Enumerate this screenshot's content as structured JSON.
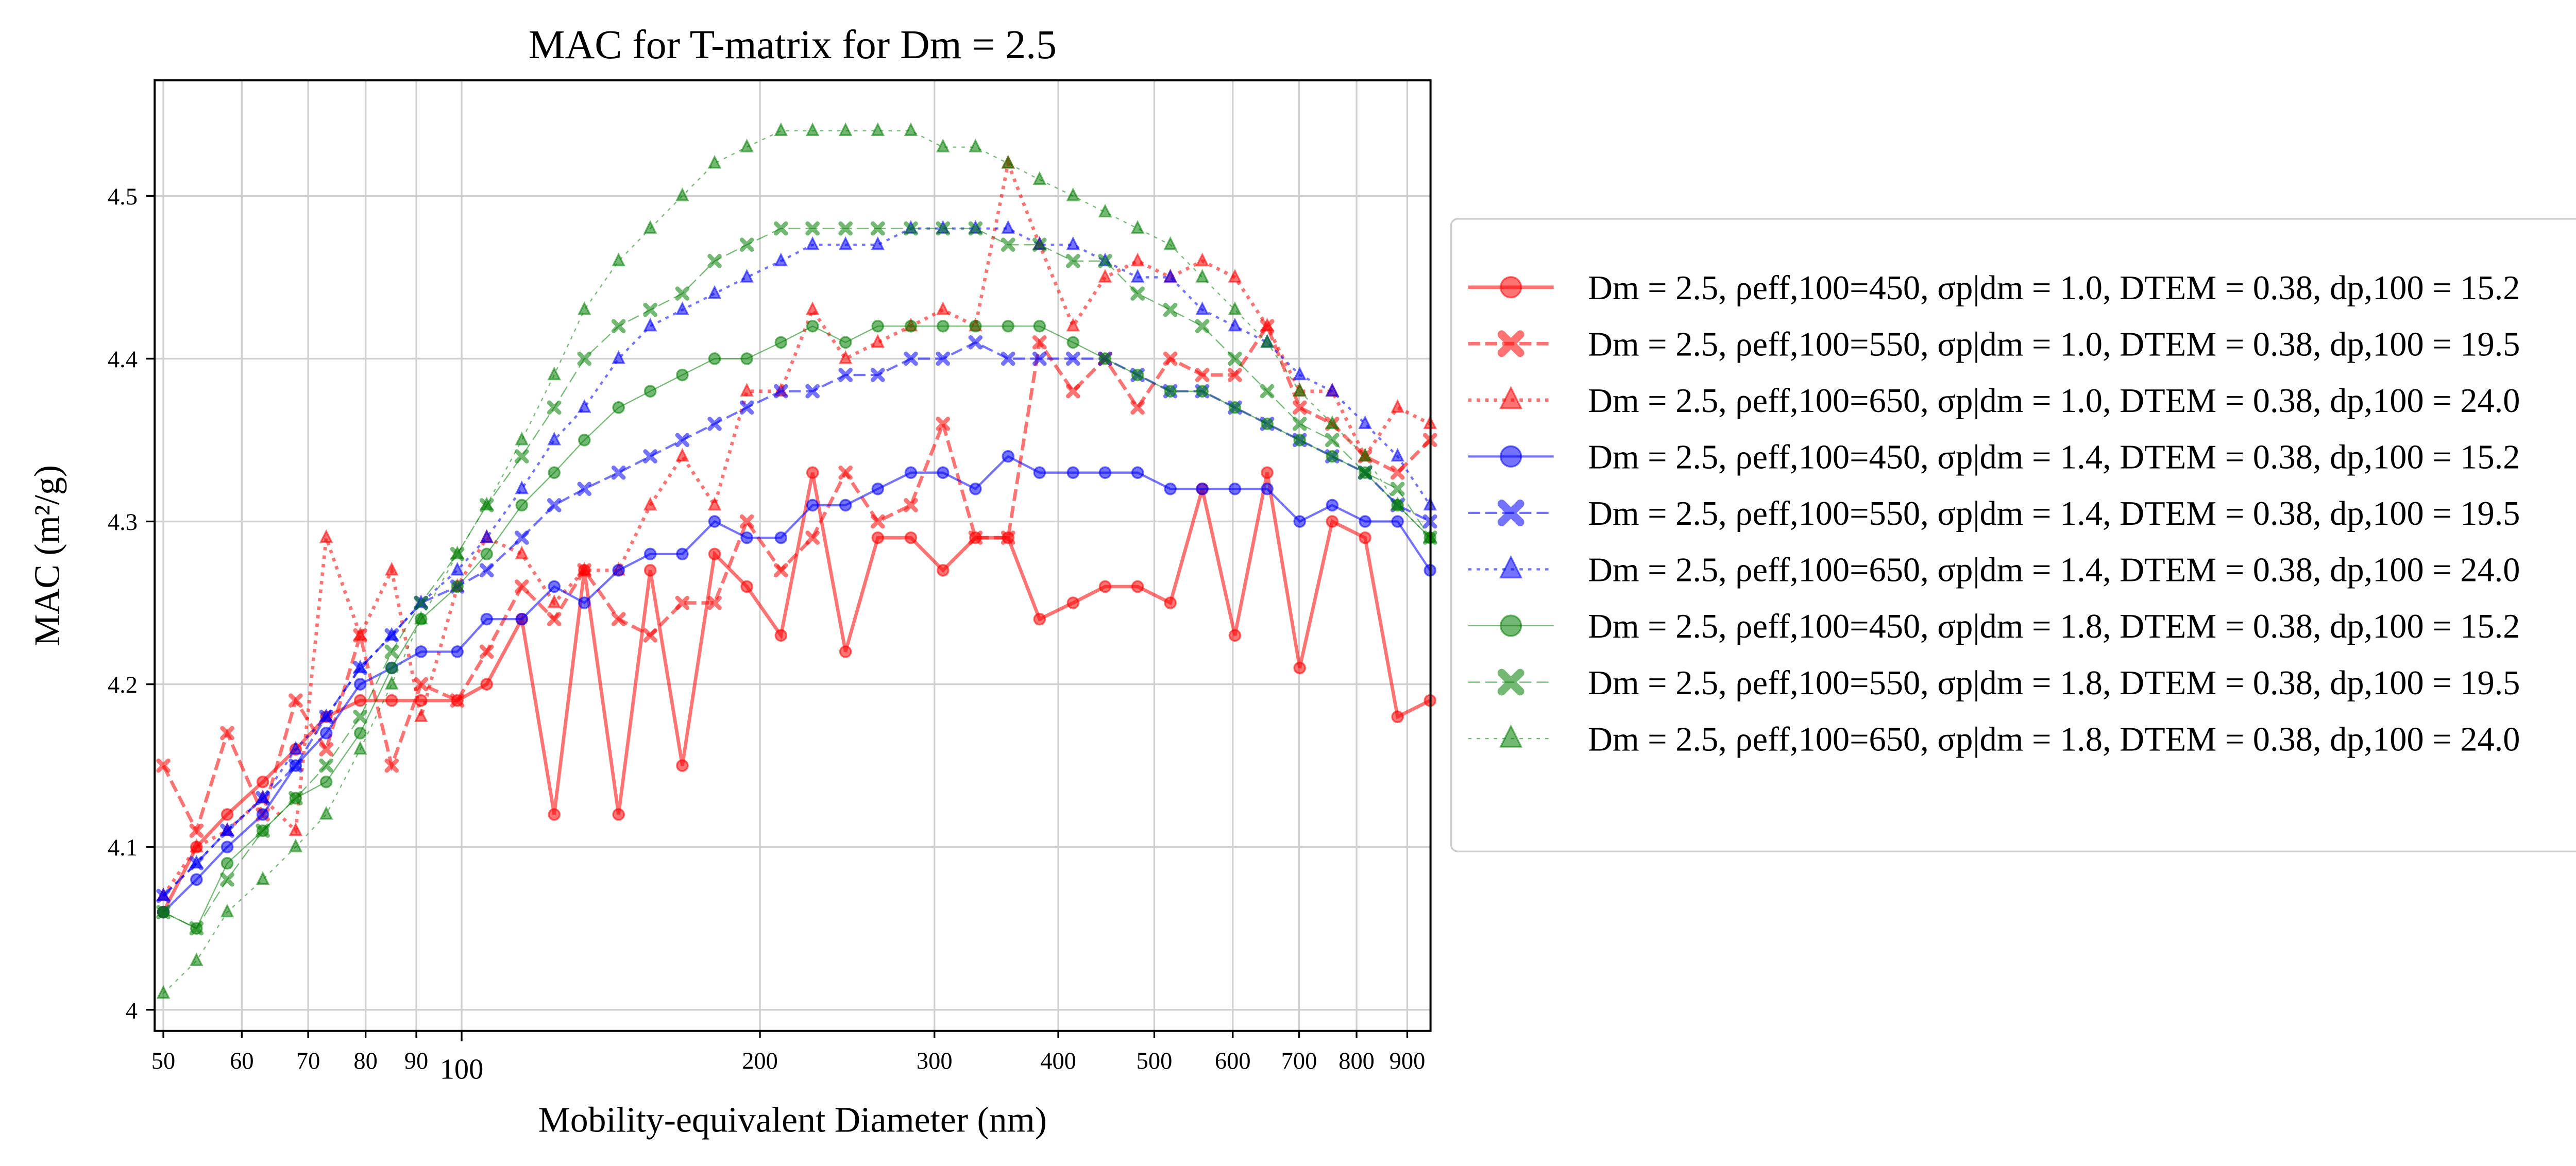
{
  "chart_data": {
    "type": "line",
    "title": "MAC for T-matrix for Dm = 2.5",
    "x_label": "Mobility-equivalent Diameter (nm)",
    "y_label": "MAC (m²/g)",
    "x_scale": "log",
    "grid": true,
    "legend_position": "right",
    "xlim": [
      49,
      950
    ],
    "ylim": [
      3.987,
      4.571
    ],
    "xticks": [
      50,
      60,
      70,
      80,
      90,
      100,
      200,
      300,
      400,
      500,
      600,
      700,
      800,
      900
    ],
    "yticks": [
      4.0,
      {
        "value": 4.1,
        "label": "4.1"
      },
      {
        "value": 4.2,
        "label": "4.2"
      },
      {
        "value": 4.3,
        "label": "4.3"
      },
      {
        "value": 4.4,
        "label": "4.4"
      },
      {
        "value": 4.5,
        "label": "4.5"
      }
    ],
    "x": [
      50,
      54,
      58,
      63,
      68,
      73,
      79,
      85,
      91,
      99,
      106,
      115,
      124,
      133,
      144,
      155,
      167,
      180,
      194,
      210,
      226,
      244,
      263,
      284,
      306,
      330,
      356,
      383,
      414,
      446,
      481,
      519,
      559,
      603,
      650,
      701,
      756,
      816,
      880,
      949
    ],
    "series": [
      {
        "name": "Dm = 2.5, ρeff,100=450, σp|dm = 1.0, DTEM = 0.38, dp,100 = 15.2",
        "color": "#ff0000",
        "linestyle": "solid",
        "marker": "circle",
        "linewidth": 2,
        "values": [
          4.06,
          4.1,
          4.12,
          4.14,
          4.16,
          4.18,
          4.19,
          4.19,
          4.19,
          4.19,
          4.2,
          4.24,
          4.12,
          4.27,
          4.12,
          4.27,
          4.15,
          4.28,
          4.26,
          4.23,
          4.33,
          4.22,
          4.29,
          4.29,
          4.27,
          4.29,
          4.29,
          4.24,
          4.25,
          4.26,
          4.26,
          4.25,
          4.32,
          4.23,
          4.33,
          4.21,
          4.3,
          4.29,
          4.18,
          4.19
        ]
      },
      {
        "name": "Dm = 2.5, ρeff,100=550, σp|dm = 1.0, DTEM = 0.38, dp,100 = 19.5",
        "color": "#ff0000",
        "linestyle": "dashed",
        "marker": "x",
        "linewidth": 2,
        "values": [
          4.15,
          4.11,
          4.17,
          4.12,
          4.19,
          4.16,
          4.23,
          4.15,
          4.2,
          4.19,
          4.22,
          4.26,
          4.24,
          4.27,
          4.24,
          4.23,
          4.25,
          4.25,
          4.3,
          4.27,
          4.29,
          4.33,
          4.3,
          4.31,
          4.36,
          4.29,
          4.29,
          4.41,
          4.38,
          4.4,
          4.37,
          4.4,
          4.39,
          4.39,
          4.42,
          4.37,
          4.36,
          4.34,
          4.33,
          4.35
        ]
      },
      {
        "name": "Dm = 2.5, ρeff,100=650, σp|dm = 1.0, DTEM = 0.38, dp,100 = 24.0",
        "color": "#ff0000",
        "linestyle": "dotted",
        "marker": "triangle",
        "linewidth": 2,
        "values": [
          4.07,
          4.1,
          4.11,
          4.13,
          4.11,
          4.29,
          4.23,
          4.27,
          4.18,
          4.26,
          4.29,
          4.28,
          4.25,
          4.27,
          4.27,
          4.31,
          4.34,
          4.31,
          4.38,
          4.38,
          4.43,
          4.4,
          4.41,
          4.42,
          4.43,
          4.42,
          4.52,
          4.47,
          4.42,
          4.45,
          4.46,
          4.45,
          4.46,
          4.45,
          4.42,
          4.38,
          4.38,
          4.34,
          4.37,
          4.36
        ]
      },
      {
        "name": "Dm = 2.5, ρeff,100=450, σp|dm = 1.4, DTEM = 0.38, dp,100 = 15.2",
        "color": "#0000ff",
        "linestyle": "solid",
        "marker": "circle",
        "linewidth": 1.3,
        "values": [
          4.06,
          4.08,
          4.1,
          4.12,
          4.15,
          4.17,
          4.2,
          4.21,
          4.22,
          4.22,
          4.24,
          4.24,
          4.26,
          4.25,
          4.27,
          4.28,
          4.28,
          4.3,
          4.29,
          4.29,
          4.31,
          4.31,
          4.32,
          4.33,
          4.33,
          4.32,
          4.34,
          4.33,
          4.33,
          4.33,
          4.33,
          4.32,
          4.32,
          4.32,
          4.32,
          4.3,
          4.31,
          4.3,
          4.3,
          4.27
        ]
      },
      {
        "name": "Dm = 2.5, ρeff,100=550, σp|dm = 1.4, DTEM = 0.38, dp,100 = 19.5",
        "color": "#0000ff",
        "linestyle": "dashed",
        "marker": "x",
        "linewidth": 1.3,
        "values": [
          4.07,
          4.09,
          4.11,
          4.13,
          4.15,
          4.18,
          4.21,
          4.23,
          4.25,
          4.26,
          4.27,
          4.29,
          4.31,
          4.32,
          4.33,
          4.34,
          4.35,
          4.36,
          4.37,
          4.38,
          4.38,
          4.39,
          4.39,
          4.4,
          4.4,
          4.41,
          4.4,
          4.4,
          4.4,
          4.4,
          4.39,
          4.38,
          4.38,
          4.37,
          4.36,
          4.35,
          4.34,
          4.33,
          4.31,
          4.3
        ]
      },
      {
        "name": "Dm = 2.5, ρeff,100=650, σp|dm = 1.4, DTEM = 0.38, dp,100 = 24.0",
        "color": "#0000ff",
        "linestyle": "dotted",
        "marker": "triangle",
        "linewidth": 1.3,
        "values": [
          4.07,
          4.09,
          4.11,
          4.13,
          4.16,
          4.18,
          4.21,
          4.23,
          4.25,
          4.27,
          4.29,
          4.32,
          4.35,
          4.37,
          4.4,
          4.42,
          4.43,
          4.44,
          4.45,
          4.46,
          4.47,
          4.47,
          4.47,
          4.48,
          4.48,
          4.48,
          4.48,
          4.47,
          4.47,
          4.46,
          4.45,
          4.45,
          4.43,
          4.42,
          4.41,
          4.39,
          4.38,
          4.36,
          4.34,
          4.31
        ]
      },
      {
        "name": "Dm = 2.5, ρeff,100=450, σp|dm = 1.8, DTEM = 0.38, dp,100 = 15.2",
        "color": "#008000",
        "linestyle": "solid",
        "marker": "circle",
        "linewidth": 0.7,
        "values": [
          4.06,
          4.05,
          4.09,
          4.11,
          4.13,
          4.14,
          4.17,
          4.21,
          4.24,
          4.26,
          4.28,
          4.31,
          4.33,
          4.35,
          4.37,
          4.38,
          4.39,
          4.4,
          4.4,
          4.41,
          4.42,
          4.41,
          4.42,
          4.42,
          4.42,
          4.42,
          4.42,
          4.42,
          4.41,
          4.4,
          4.39,
          4.38,
          4.38,
          4.37,
          4.36,
          4.35,
          4.34,
          4.33,
          4.31,
          4.29
        ]
      },
      {
        "name": "Dm = 2.5, ρeff,100=550, σp|dm = 1.8, DTEM = 0.38, dp,100 = 19.5",
        "color": "#008000",
        "linestyle": "dashed",
        "marker": "x",
        "linewidth": 0.7,
        "values": [
          4.06,
          4.05,
          4.08,
          4.11,
          4.13,
          4.15,
          4.18,
          4.22,
          4.25,
          4.28,
          4.31,
          4.34,
          4.37,
          4.4,
          4.42,
          4.43,
          4.44,
          4.46,
          4.47,
          4.48,
          4.48,
          4.48,
          4.48,
          4.48,
          4.48,
          4.48,
          4.47,
          4.47,
          4.46,
          4.46,
          4.44,
          4.43,
          4.42,
          4.4,
          4.38,
          4.36,
          4.35,
          4.33,
          4.32,
          4.29
        ]
      },
      {
        "name": "Dm = 2.5, ρeff,100=650, σp|dm = 1.8, DTEM = 0.38, dp,100 = 24.0",
        "color": "#008000",
        "linestyle": "dotted",
        "marker": "triangle",
        "linewidth": 0.7,
        "values": [
          4.01,
          4.03,
          4.06,
          4.08,
          4.1,
          4.12,
          4.16,
          4.2,
          4.24,
          4.28,
          4.31,
          4.35,
          4.39,
          4.43,
          4.46,
          4.48,
          4.5,
          4.52,
          4.53,
          4.54,
          4.54,
          4.54,
          4.54,
          4.54,
          4.53,
          4.53,
          4.52,
          4.51,
          4.5,
          4.49,
          4.48,
          4.47,
          4.45,
          4.43,
          4.41,
          4.38,
          4.36,
          4.34,
          4.31,
          4.29
        ]
      }
    ]
  }
}
